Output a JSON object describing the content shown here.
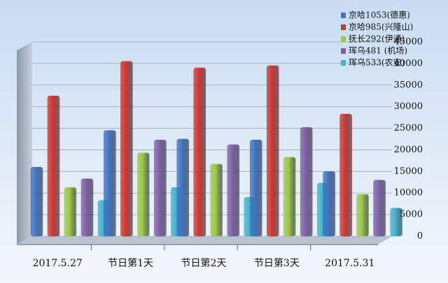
{
  "chart_data": {
    "type": "bar",
    "categories": [
      "2017.5.27",
      "节日第1天",
      "节日第2天",
      "节日第3天",
      "2017.5.31"
    ],
    "series": [
      {
        "name": "京哈1053(德惠)",
        "color": "#3f73c4",
        "values": [
          16000,
          24500,
          22500,
          22300,
          15000
        ]
      },
      {
        "name": "京哈985(兴隆山)",
        "color": "#d4332b",
        "values": [
          32500,
          40500,
          39000,
          39500,
          28300
        ]
      },
      {
        "name": "抚长292(伊通)",
        "color": "#9cc83f",
        "values": [
          11300,
          19300,
          16700,
          18300,
          9700
        ]
      },
      {
        "name": "珲乌481 (机场)",
        "color": "#7f5fa6",
        "values": [
          13300,
          22300,
          21200,
          25200,
          13000
        ]
      },
      {
        "name": "珲乌533(农安)",
        "color": "#3fb3cf",
        "values": [
          8300,
          11300,
          9000,
          12300,
          6500
        ]
      }
    ],
    "ylim": [
      0,
      45000
    ],
    "yticks": [
      0,
      5000,
      10000,
      15000,
      20000,
      25000,
      30000,
      35000,
      40000,
      45000
    ],
    "grid": true
  }
}
